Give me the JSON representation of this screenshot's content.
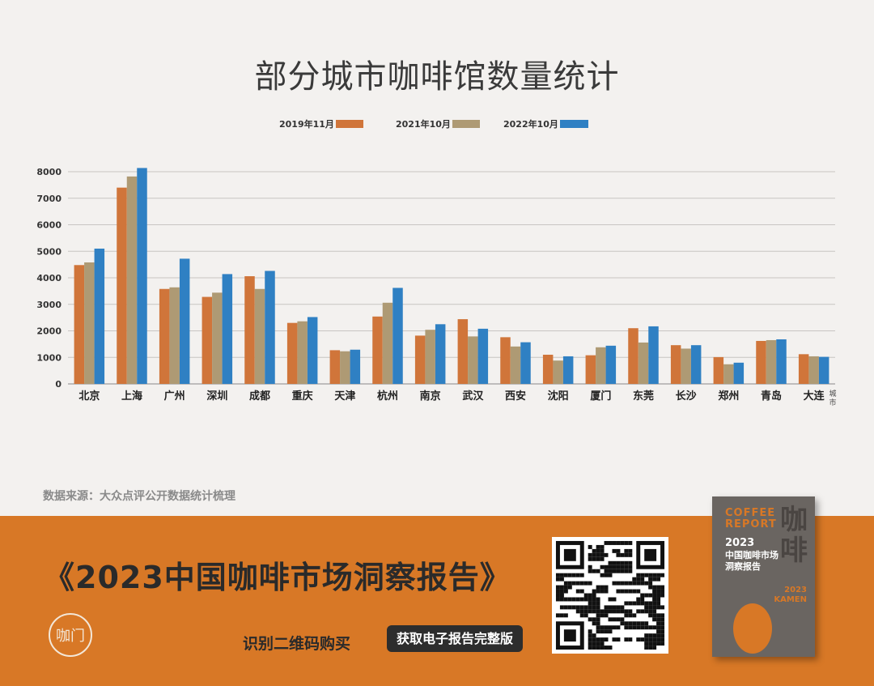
{
  "title": "部分城市咖啡馆数量统计",
  "source": "数据来源：大众点评公开数据统计梳理",
  "banner": {
    "report_title": "《2023中国咖啡市场洞察报告》",
    "scan_text": "识别二维码购买",
    "button_label": "获取电子报告完整版",
    "logo_text": "咖门",
    "book": {
      "coffee": "COFFEE",
      "report": "REPORT",
      "year": "2023",
      "name_line1": "中国咖啡市场",
      "name_line2": "洞察报告",
      "big_char1": "咖",
      "big_char2": "啡",
      "kamen_year": "2023",
      "kamen": "KAMEN"
    }
  },
  "colors": {
    "s1": "#d0753a",
    "s2": "#ae9a74",
    "s3": "#2f80c3",
    "banner": "#d87826"
  },
  "chart_data": {
    "type": "bar",
    "title": "部分城市咖啡馆数量统计",
    "xlabel": "城市",
    "ylabel": "",
    "ylim": [
      0,
      8000
    ],
    "yticks": [
      0,
      1000,
      2000,
      3000,
      4000,
      5000,
      6000,
      7000,
      8000
    ],
    "grid": true,
    "legend_position": "top",
    "categories": [
      "北京",
      "上海",
      "广州",
      "深圳",
      "成都",
      "重庆",
      "天津",
      "杭州",
      "南京",
      "武汉",
      "西安",
      "沈阳",
      "厦门",
      "东莞",
      "长沙",
      "郑州",
      "青岛",
      "大连"
    ],
    "series": [
      {
        "name": "2019年11月",
        "values": [
          4480,
          7400,
          3580,
          3280,
          4060,
          2300,
          1270,
          2540,
          1820,
          2440,
          1760,
          1100,
          1080,
          2100,
          1460,
          1010,
          1620,
          1120
        ]
      },
      {
        "name": "2021年10月",
        "values": [
          4580,
          7820,
          3640,
          3440,
          3580,
          2360,
          1230,
          3060,
          2040,
          1790,
          1410,
          880,
          1380,
          1560,
          1330,
          740,
          1650,
          1040
        ]
      },
      {
        "name": "2022年10月",
        "values": [
          5100,
          8140,
          4720,
          4140,
          4260,
          2520,
          1290,
          3620,
          2250,
          2080,
          1570,
          1040,
          1440,
          2170,
          1460,
          800,
          1680,
          1020
        ]
      }
    ]
  }
}
